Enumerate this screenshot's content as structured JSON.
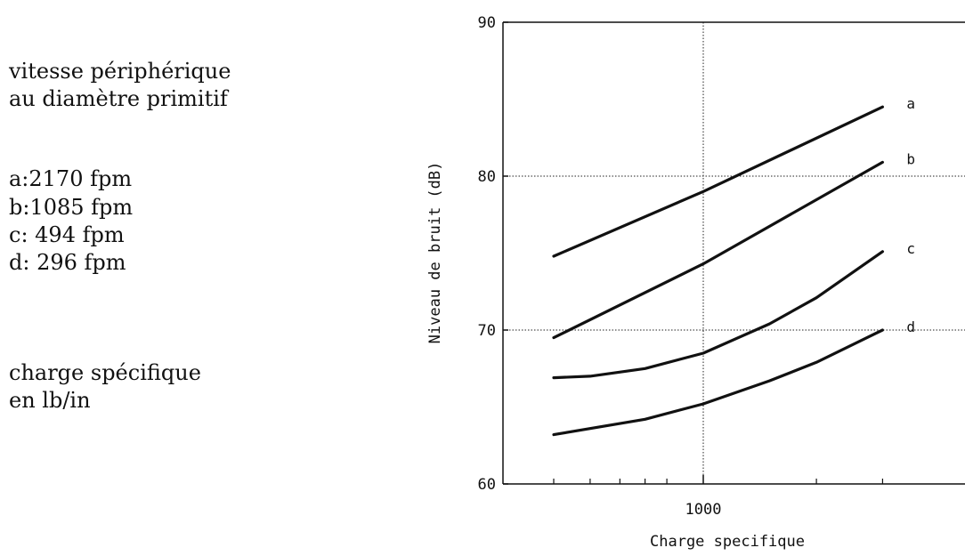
{
  "notes": {
    "speed_title_1": "vitesse périphérique",
    "speed_title_2": "au diamètre primitif",
    "legend": [
      "a:2170 fpm",
      "b:1085 fpm",
      "c: 494 fpm",
      "d: 296 fpm"
    ],
    "load_title_1": "charge spécifique",
    "load_title_2": "en lb/in"
  },
  "chart_data": {
    "type": "line",
    "xlabel": "Charge specifique",
    "ylabel": "Niveau de bruit (dB)",
    "x_scale": "log",
    "xlim": [
      300,
      4000
    ],
    "ylim": [
      60,
      90
    ],
    "xticks_labeled": [
      1000
    ],
    "xticks_minor": [
      400,
      500,
      600,
      700,
      800,
      2000,
      3000
    ],
    "yticks": [
      60,
      70,
      80,
      90
    ],
    "grid": "dotted lines at x=1000 and y=70, 80",
    "series": [
      {
        "name": "a",
        "x": [
          400,
          1000,
          3000
        ],
        "y": [
          74.8,
          79.0,
          84.5
        ]
      },
      {
        "name": "b",
        "x": [
          400,
          1000,
          3000
        ],
        "y": [
          69.5,
          74.3,
          80.9
        ]
      },
      {
        "name": "c",
        "x": [
          400,
          500,
          700,
          1000,
          1500,
          2000,
          3000
        ],
        "y": [
          66.9,
          67.0,
          67.5,
          68.5,
          70.4,
          72.1,
          75.1
        ]
      },
      {
        "name": "d",
        "x": [
          400,
          700,
          1000,
          1500,
          2000,
          3000
        ],
        "y": [
          63.2,
          64.2,
          65.2,
          66.7,
          67.9,
          70.0
        ]
      }
    ]
  }
}
